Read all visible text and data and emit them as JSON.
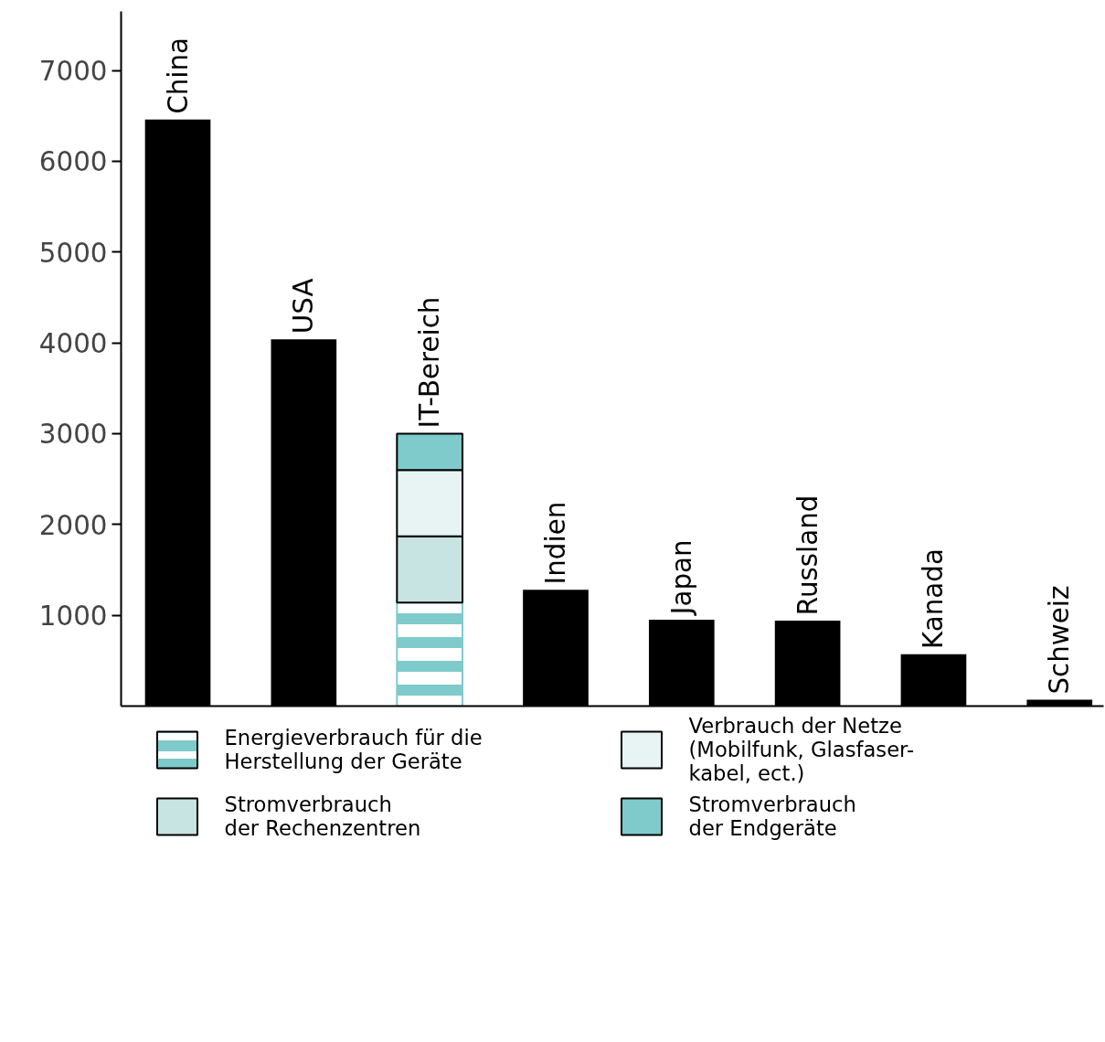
{
  "chart_data": {
    "type": "bar",
    "stacked": true,
    "categories": [
      "China",
      "USA",
      "IT-Bereich",
      "Indien",
      "Japan",
      "Russland",
      "Kanada",
      "Schweiz"
    ],
    "series": [
      {
        "color": "#000000",
        "values": [
          6460,
          4040,
          null,
          1280,
          950,
          940,
          570,
          70
        ]
      },
      {
        "name": "Energieverbrauch für die\nHerstellung der Geräte",
        "color": "#7fcacb",
        "values": [
          null,
          null,
          1140,
          null,
          null,
          null,
          null,
          null
        ]
      },
      {
        "name": "Stromverbrauch\nder Rechenzentren",
        "color": "#c7e3e2",
        "values": [
          null,
          null,
          730,
          null,
          null,
          null,
          null,
          null
        ]
      },
      {
        "name": "Verbrauch der Netze\n(Mobilfunk, Glasfaser-\nkabel, ect.)",
        "color": "#e8f4f3",
        "values": [
          null,
          null,
          730,
          null,
          null,
          null,
          null,
          null
        ]
      },
      {
        "name": "Stromverbrauch\nder Endgeräte",
        "color": "#7fcacb",
        "values": [
          null,
          null,
          400,
          null,
          null,
          null,
          null,
          null
        ]
      }
    ],
    "ylim": [
      0,
      7650
    ],
    "yticks": [
      1000,
      2000,
      3000,
      4000,
      5000,
      6000,
      7000
    ],
    "tick_labels": "y",
    "grid": false,
    "legend": "bottom"
  }
}
